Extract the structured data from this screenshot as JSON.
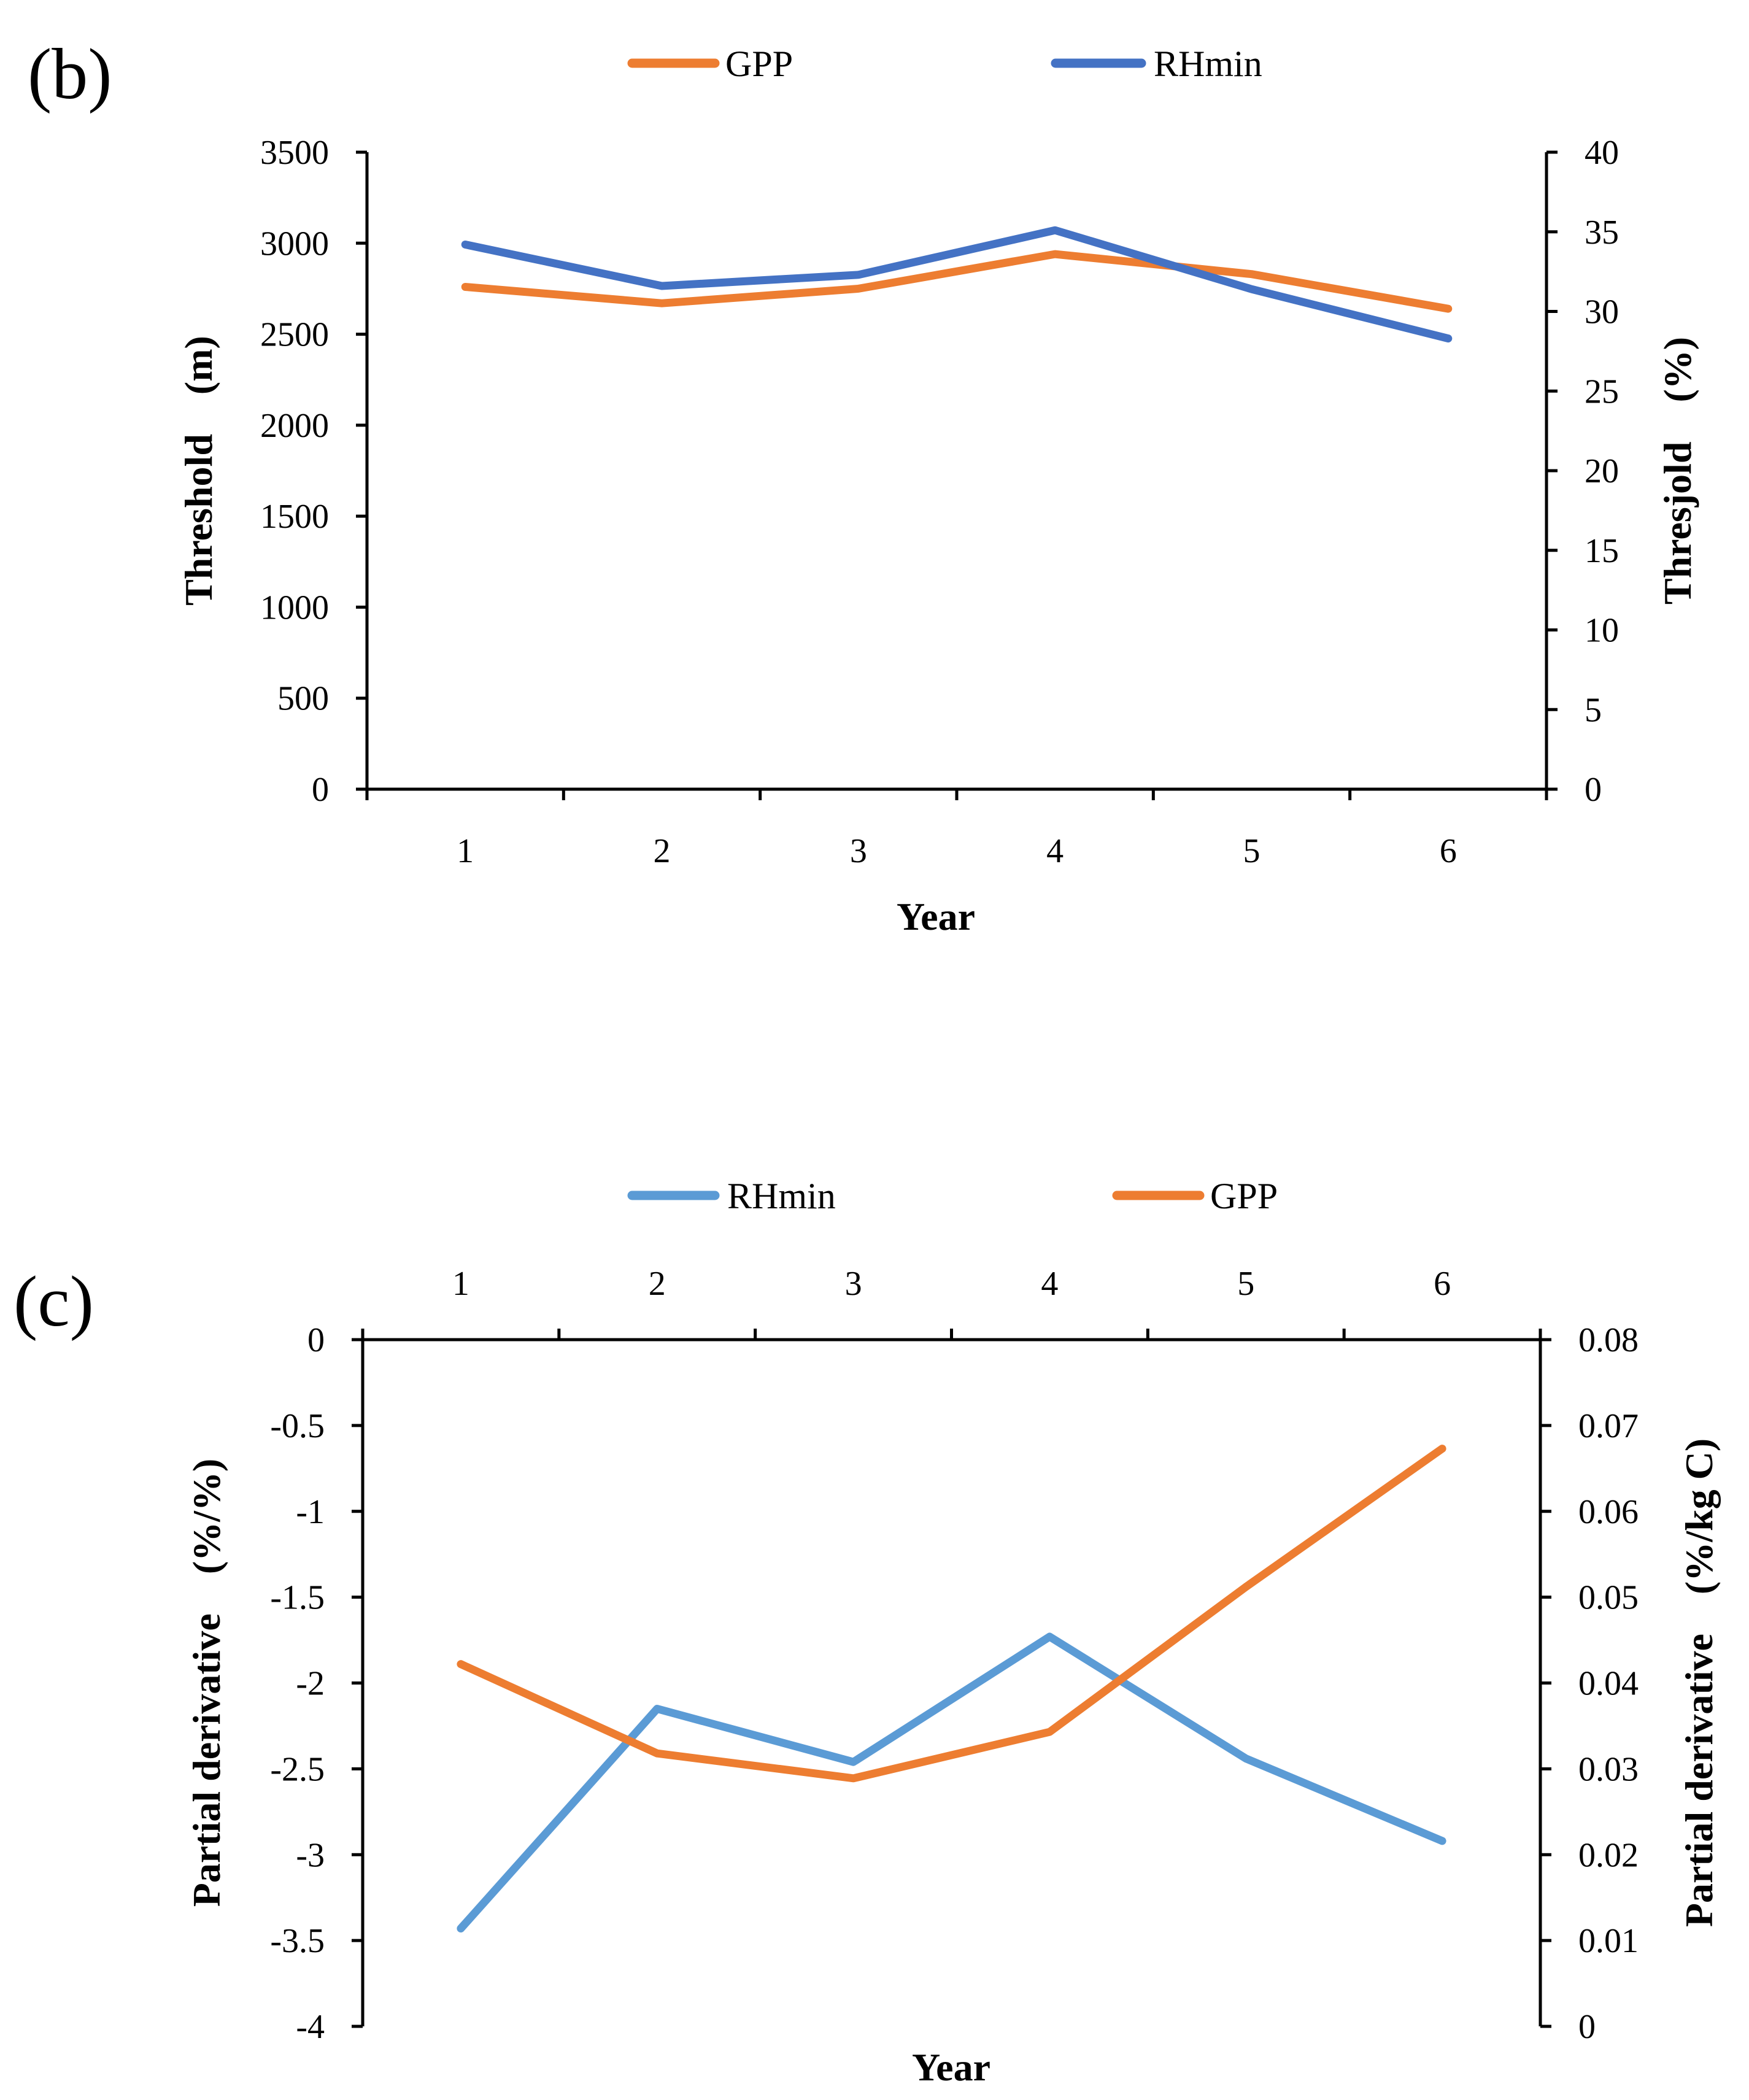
{
  "chart_data": [
    {
      "panel": "(b)",
      "type": "line",
      "x": [
        1,
        2,
        3,
        4,
        5,
        6
      ],
      "xlabel": "Year",
      "ylabel_left": "Threshold　(m)",
      "ylabel_right": "Thresjold　(%)",
      "ylim_left": [
        0,
        3500
      ],
      "ylim_right": [
        0,
        40
      ],
      "yticks_left": [
        "0",
        "500",
        "1000",
        "1500",
        "2000",
        "2500",
        "3000",
        "3500"
      ],
      "yticks_right": [
        "0",
        "5",
        "10",
        "15",
        "20",
        "25",
        "30",
        "35",
        "40"
      ],
      "xticks": [
        "1",
        "2",
        "3",
        "4",
        "5",
        "6"
      ],
      "legend_position": "top",
      "series": [
        {
          "name": "GPP",
          "axis": "left",
          "color": "#ED7D31",
          "values": [
            2760,
            2670,
            2750,
            2940,
            2830,
            2640
          ]
        },
        {
          "name": "RHmin",
          "axis": "right",
          "color": "#4472C4",
          "values": [
            34.2,
            31.6,
            32.3,
            35.1,
            31.4,
            28.3
          ]
        }
      ]
    },
    {
      "panel": "(c)",
      "type": "line",
      "x": [
        1,
        2,
        3,
        4,
        5,
        6
      ],
      "xlabel": "Year",
      "ylabel_left": "Partial derivative　(%/%)",
      "ylabel_right": "Partial derivative　(%/kg C)",
      "ylim_left": [
        -4,
        0
      ],
      "ylim_right": [
        0,
        0.08
      ],
      "yticks_left": [
        "0",
        "-0.5",
        "-1",
        "-1.5",
        "-2",
        "-2.5",
        "-3",
        "-3.5",
        "-4"
      ],
      "yticks_right": [
        "0",
        "0.01",
        "0.02",
        "0.03",
        "0.04",
        "0.05",
        "0.06",
        "0.07",
        "0.08"
      ],
      "xticks": [
        "1",
        "2",
        "3",
        "4",
        "5",
        "6"
      ],
      "legend_position": "top",
      "series": [
        {
          "name": "RHmin",
          "axis": "left",
          "color": "#5B9BD5",
          "values": [
            -3.43,
            -2.15,
            -2.46,
            -1.73,
            -2.44,
            -2.92
          ]
        },
        {
          "name": "GPP",
          "axis": "right",
          "color": "#ED7D31",
          "values": [
            0.0422,
            0.0318,
            0.0289,
            0.0343,
            0.0512,
            0.0673
          ]
        }
      ]
    }
  ]
}
